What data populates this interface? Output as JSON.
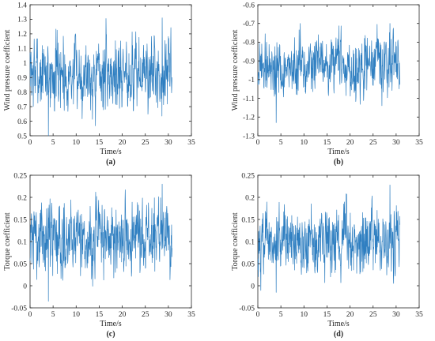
{
  "colors": {
    "line": "#2f7fc1",
    "axis": "#262626",
    "background": "#ffffff"
  },
  "chart_data": [
    {
      "type": "line",
      "panel_label": "(a)",
      "xlabel": "Time/s",
      "ylabel": "Wind pressure coefficient",
      "xlim": [
        0,
        35
      ],
      "ylim": [
        0.5,
        1.4
      ],
      "xticks": [
        0,
        5,
        10,
        15,
        20,
        25,
        30,
        35
      ],
      "yticks": [
        0.5,
        0.6,
        0.7,
        0.8,
        0.9,
        1,
        1.1,
        1.2,
        1.3,
        1.4
      ],
      "grid": false,
      "series": [
        {
          "x_range": [
            0,
            30.8
          ],
          "mean": 0.93,
          "min": 0.5,
          "max": 1.31
        }
      ]
    },
    {
      "type": "line",
      "panel_label": "(b)",
      "xlabel": "Time/s",
      "ylabel": "Wind pressure coefficient",
      "xlim": [
        0,
        35
      ],
      "ylim": [
        -1.3,
        -0.6
      ],
      "xticks": [
        0,
        5,
        10,
        15,
        20,
        25,
        30,
        35
      ],
      "yticks": [
        -1.3,
        -1.2,
        -1.1,
        -1,
        -0.9,
        -0.8,
        -0.7,
        -0.6
      ],
      "grid": false,
      "series": [
        {
          "x_range": [
            0,
            30.8
          ],
          "mean": -0.93,
          "min": -1.23,
          "max": -0.7
        }
      ]
    },
    {
      "type": "line",
      "panel_label": "(c)",
      "xlabel": "Time/s",
      "ylabel": "Torque coefficient",
      "xlim": [
        0,
        35
      ],
      "ylim": [
        -0.05,
        0.25
      ],
      "xticks": [
        0,
        5,
        10,
        15,
        20,
        25,
        30,
        35
      ],
      "yticks": [
        -0.05,
        0,
        0.05,
        0.1,
        0.15,
        0.2,
        0.25
      ],
      "grid": false,
      "series": [
        {
          "x_range": [
            0,
            30.8
          ],
          "mean": 0.11,
          "min": -0.035,
          "max": 0.23
        }
      ]
    },
    {
      "type": "line",
      "panel_label": "(d)",
      "xlabel": "Time/s",
      "ylabel": "Torque coefficient",
      "xlim": [
        0,
        35
      ],
      "ylim": [
        -0.05,
        0.25
      ],
      "xticks": [
        0,
        5,
        10,
        15,
        20,
        25,
        30,
        35
      ],
      "yticks": [
        -0.05,
        0,
        0.05,
        0.1,
        0.15,
        0.2,
        0.25
      ],
      "grid": false,
      "series": [
        {
          "x_range": [
            0,
            30.8
          ],
          "mean": 0.1,
          "min": -0.015,
          "max": 0.228
        }
      ]
    }
  ]
}
